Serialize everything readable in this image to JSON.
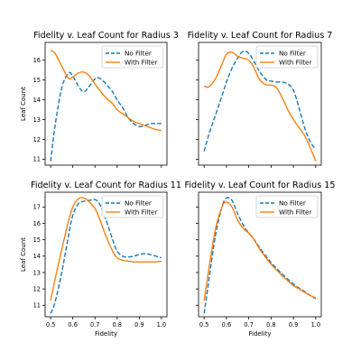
{
  "figure": {
    "colors": {
      "no_filter": "#1f77b4",
      "with_filter": "#ff7f0e"
    }
  },
  "chart_data": [
    {
      "type": "line",
      "title": "Fidelity v. Leaf Count for Radius 3",
      "xlabel": "",
      "ylabel": "Leaf Count",
      "xlim": [
        0.475,
        1.025
      ],
      "ylim": [
        10.7,
        16.9
      ],
      "xticks": [],
      "yticks": [
        11,
        12,
        13,
        14,
        15,
        16
      ],
      "legend": "top-right",
      "grid": false,
      "series": [
        {
          "name": "No Filter",
          "style": "dashed",
          "x": [
            0.5,
            0.52,
            0.55,
            0.58,
            0.6,
            0.625,
            0.65,
            0.675,
            0.7,
            0.72,
            0.75,
            0.78,
            0.8,
            0.825,
            0.85,
            0.875,
            0.9,
            0.925,
            0.95,
            0.975,
            1.0
          ],
          "y": [
            10.9,
            12.7,
            14.6,
            15.35,
            15.2,
            14.7,
            14.4,
            14.7,
            15.05,
            15.1,
            14.8,
            14.4,
            14.0,
            13.6,
            13.1,
            12.8,
            12.65,
            12.7,
            12.8,
            12.8,
            12.8
          ]
        },
        {
          "name": "With Filter",
          "style": "solid",
          "x": [
            0.5,
            0.52,
            0.55,
            0.58,
            0.6,
            0.625,
            0.65,
            0.675,
            0.7,
            0.72,
            0.75,
            0.78,
            0.8,
            0.825,
            0.85,
            0.875,
            0.9,
            0.925,
            0.95,
            0.975,
            1.0
          ],
          "y": [
            16.5,
            16.35,
            15.7,
            15.1,
            15.15,
            15.35,
            15.4,
            15.2,
            14.8,
            14.5,
            14.1,
            13.8,
            13.5,
            13.3,
            13.1,
            12.9,
            12.8,
            12.7,
            12.6,
            12.5,
            12.45
          ]
        }
      ]
    },
    {
      "type": "line",
      "title": "Fidelity v. Leaf Count for Radius 7",
      "xlabel": "",
      "ylabel": "",
      "xlim": [
        0.475,
        1.025
      ],
      "ylim": [
        10.7,
        16.9
      ],
      "xticks": [],
      "yticks": [],
      "legend": "top-right",
      "grid": false,
      "series": [
        {
          "name": "No Filter",
          "style": "dashed",
          "x": [
            0.5,
            0.52,
            0.55,
            0.58,
            0.6,
            0.625,
            0.65,
            0.675,
            0.7,
            0.72,
            0.75,
            0.78,
            0.8,
            0.825,
            0.85,
            0.875,
            0.9,
            0.925,
            0.95,
            0.975,
            1.0
          ],
          "y": [
            11.4,
            12.2,
            13.2,
            14.2,
            14.9,
            15.6,
            16.1,
            16.45,
            16.35,
            16.0,
            15.4,
            15.0,
            14.95,
            14.9,
            14.9,
            14.8,
            14.5,
            13.6,
            12.6,
            11.9,
            11.5
          ]
        },
        {
          "name": "With Filter",
          "style": "solid",
          "x": [
            0.5,
            0.52,
            0.55,
            0.58,
            0.6,
            0.625,
            0.65,
            0.675,
            0.7,
            0.72,
            0.75,
            0.78,
            0.8,
            0.825,
            0.85,
            0.875,
            0.9,
            0.925,
            0.95,
            0.975,
            1.0
          ],
          "y": [
            14.7,
            14.65,
            15.05,
            15.8,
            16.3,
            16.4,
            16.2,
            16.1,
            16.0,
            15.7,
            15.0,
            14.75,
            14.75,
            14.6,
            14.1,
            13.5,
            13.0,
            12.6,
            12.2,
            11.6,
            10.9
          ]
        }
      ]
    },
    {
      "type": "line",
      "title": "Fidelity v. Leaf Count for Radius 11",
      "xlabel": "Fidelity",
      "ylabel": "Leaf Count",
      "xlim": [
        0.475,
        1.025
      ],
      "ylim": [
        10.3,
        17.9
      ],
      "xticks": [
        0.5,
        0.6,
        0.7,
        0.8,
        0.9,
        1.0
      ],
      "yticks": [
        11,
        12,
        13,
        14,
        15,
        16,
        17
      ],
      "legend": "top-right",
      "grid": false,
      "series": [
        {
          "name": "No Filter",
          "style": "dashed",
          "x": [
            0.5,
            0.52,
            0.55,
            0.58,
            0.6,
            0.625,
            0.65,
            0.675,
            0.7,
            0.72,
            0.75,
            0.78,
            0.8,
            0.825,
            0.85,
            0.875,
            0.9,
            0.925,
            0.95,
            0.975,
            1.0
          ],
          "y": [
            10.5,
            11.2,
            13.0,
            15.2,
            16.5,
            17.2,
            17.35,
            17.4,
            17.45,
            17.2,
            16.2,
            15.0,
            14.3,
            14.0,
            13.95,
            14.0,
            14.1,
            14.15,
            14.1,
            14.0,
            13.9
          ]
        },
        {
          "name": "With Filter",
          "style": "solid",
          "x": [
            0.5,
            0.52,
            0.55,
            0.58,
            0.6,
            0.625,
            0.65,
            0.675,
            0.7,
            0.72,
            0.75,
            0.78,
            0.8,
            0.825,
            0.85,
            0.875,
            0.9,
            0.925,
            0.95,
            0.975,
            1.0
          ],
          "y": [
            11.3,
            12.6,
            14.4,
            16.1,
            17.0,
            17.5,
            17.55,
            17.3,
            16.9,
            16.3,
            15.2,
            14.3,
            13.9,
            13.75,
            13.7,
            13.65,
            13.65,
            13.65,
            13.65,
            13.65,
            13.7
          ]
        }
      ]
    },
    {
      "type": "line",
      "title": "Fidelity v. Leaf Count for Radius 15",
      "xlabel": "Fidelity",
      "ylabel": "",
      "xlim": [
        0.475,
        1.025
      ],
      "ylim": [
        10.3,
        17.9
      ],
      "xticks": [
        0.5,
        0.6,
        0.7,
        0.8,
        0.9,
        1.0
      ],
      "yticks": [],
      "legend": "top-right",
      "grid": false,
      "series": [
        {
          "name": "No Filter",
          "style": "dashed",
          "x": [
            0.5,
            0.52,
            0.55,
            0.58,
            0.6,
            0.625,
            0.65,
            0.675,
            0.7,
            0.72,
            0.75,
            0.78,
            0.8,
            0.825,
            0.85,
            0.875,
            0.9,
            0.925,
            0.95,
            0.975,
            1.0
          ],
          "y": [
            10.5,
            12.4,
            15.2,
            17.0,
            17.55,
            17.4,
            16.6,
            15.9,
            15.4,
            15.1,
            14.5,
            13.95,
            13.6,
            13.25,
            12.9,
            12.6,
            12.3,
            12.05,
            11.85,
            11.6,
            11.4
          ]
        },
        {
          "name": "With Filter",
          "style": "solid",
          "x": [
            0.5,
            0.52,
            0.55,
            0.58,
            0.6,
            0.625,
            0.65,
            0.675,
            0.7,
            0.72,
            0.75,
            0.78,
            0.8,
            0.825,
            0.85,
            0.875,
            0.9,
            0.925,
            0.95,
            0.975,
            1.0
          ],
          "y": [
            11.3,
            13.1,
            15.6,
            17.0,
            17.3,
            17.0,
            16.2,
            15.7,
            15.4,
            15.1,
            14.4,
            13.85,
            13.5,
            13.15,
            12.8,
            12.5,
            12.2,
            12.0,
            11.8,
            11.6,
            11.45
          ]
        }
      ]
    }
  ]
}
